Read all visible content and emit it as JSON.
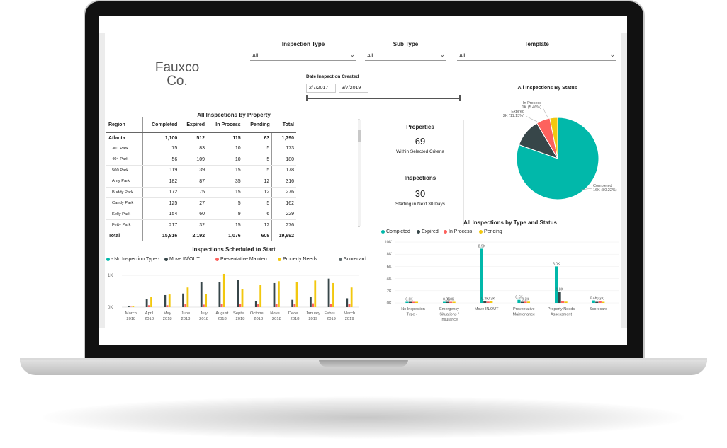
{
  "filters": {
    "inspection_type": {
      "label": "Inspection Type",
      "value": "All"
    },
    "sub_type": {
      "label": "Sub Type",
      "value": "All"
    },
    "template": {
      "label": "Template",
      "value": "All"
    },
    "date": {
      "label": "Date Inspection Created",
      "start": "2/7/2017",
      "end": "3/7/2019"
    }
  },
  "logo": {
    "line1": "Fauxco",
    "line2": "Co."
  },
  "property_table": {
    "title": "All Inspections by Property",
    "headers": [
      "Region",
      "Completed",
      "Expired",
      "In Process",
      "Pending",
      "Total"
    ],
    "rows": [
      {
        "name": "Atlanta",
        "completed": "1,100",
        "expired": "512",
        "in_process": "115",
        "pending": "63",
        "total": "1,790",
        "group": true
      },
      {
        "name": "301 Park",
        "completed": "75",
        "expired": "83",
        "in_process": "10",
        "pending": "5",
        "total": "173"
      },
      {
        "name": "404 Park",
        "completed": "56",
        "expired": "109",
        "in_process": "10",
        "pending": "5",
        "total": "180"
      },
      {
        "name": "500 Park",
        "completed": "119",
        "expired": "39",
        "in_process": "15",
        "pending": "5",
        "total": "178"
      },
      {
        "name": "Amy Park",
        "completed": "182",
        "expired": "87",
        "in_process": "35",
        "pending": "12",
        "total": "316"
      },
      {
        "name": "Buddy Park",
        "completed": "172",
        "expired": "75",
        "in_process": "15",
        "pending": "12",
        "total": "276"
      },
      {
        "name": "Candy Park",
        "completed": "125",
        "expired": "27",
        "in_process": "5",
        "pending": "5",
        "total": "162"
      },
      {
        "name": "Kelly Park",
        "completed": "154",
        "expired": "60",
        "in_process": "9",
        "pending": "6",
        "total": "229"
      },
      {
        "name": "Fetty Park",
        "completed": "217",
        "expired": "32",
        "in_process": "15",
        "pending": "12",
        "total": "276"
      }
    ],
    "total": {
      "name": "Total",
      "completed": "15,816",
      "expired": "2,192",
      "in_process": "1,076",
      "pending": "608",
      "total": "19,692"
    }
  },
  "cards": {
    "properties": {
      "title": "Properties",
      "value": "69",
      "sub": "Within Selected Criteria"
    },
    "inspections": {
      "title": "Inspections",
      "value": "30",
      "sub": "Starting in Next 30 Days"
    }
  },
  "colors": {
    "completed": "#01b8aa",
    "expired": "#374649",
    "in_process": "#fd625e",
    "pending": "#f2c80f",
    "scorecard": "#5f6b6d"
  },
  "chart_data": [
    {
      "type": "pie",
      "title": "All Inspections By Status",
      "slices": [
        {
          "name": "Completed",
          "value": 16000,
          "label": "Completed 16K (80.22%)",
          "label_name": "Completed",
          "label_value": "16K (80.22%)"
        },
        {
          "name": "Expired",
          "value": 2200,
          "label": "Expired 2K (11.13%)",
          "label_name": "Expired",
          "label_value": "2K (11.13%)"
        },
        {
          "name": "In Process",
          "value": 1076,
          "label": "In Process 1K (5.46%)",
          "label_name": "In Process",
          "label_value": "1K (5.46%)"
        },
        {
          "name": "Pending",
          "value": 608,
          "label_name": "",
          "label_value": ""
        }
      ]
    },
    {
      "type": "bar",
      "title": "Inspections Scheduled to Start",
      "legend": [
        "- No Inspection Type -",
        "Move IN/OUT",
        "Preventative Mainten...",
        "Property Needs ...",
        "Scorecard"
      ],
      "yticks": [
        "1K",
        "0K"
      ],
      "ylim": [
        0,
        1250
      ],
      "categories": [
        [
          "March",
          "2018"
        ],
        [
          "April",
          "2018"
        ],
        [
          "May",
          "2018"
        ],
        [
          "June",
          "2018"
        ],
        [
          "July",
          "2018"
        ],
        [
          "August",
          "2018"
        ],
        [
          "Septe...",
          "2018"
        ],
        [
          "Octobe...",
          "2018"
        ],
        [
          "Nove...",
          "2018"
        ],
        [
          "Dece...",
          "2018"
        ],
        [
          "January",
          "2019"
        ],
        [
          "Febru...",
          "2019"
        ],
        [
          "March",
          "2019"
        ]
      ],
      "series": [
        {
          "name": "- No Inspection Type -",
          "color": "#01b8aa",
          "values": [
            0,
            0,
            0,
            0,
            0,
            0,
            0,
            0,
            0,
            0,
            0,
            0,
            0
          ]
        },
        {
          "name": "Move IN/OUT",
          "color": "#374649",
          "values": [
            30,
            250,
            380,
            430,
            800,
            800,
            850,
            180,
            760,
            230,
            330,
            900,
            280
          ]
        },
        {
          "name": "Preventative Mainten...",
          "color": "#fd625e",
          "values": [
            10,
            60,
            60,
            90,
            80,
            100,
            100,
            100,
            110,
            110,
            120,
            110,
            100
          ]
        },
        {
          "name": "Property Needs ...",
          "color": "#f2c80f",
          "values": [
            20,
            330,
            400,
            620,
            420,
            1050,
            580,
            700,
            820,
            800,
            840,
            760,
            620
          ]
        },
        {
          "name": "Scorecard",
          "color": "#5f6b6d",
          "values": [
            0,
            0,
            0,
            0,
            0,
            0,
            0,
            0,
            0,
            0,
            0,
            0,
            0
          ]
        }
      ]
    },
    {
      "type": "bar",
      "title": "All Inspections by Type and Status",
      "legend": [
        "Completed",
        "Expired",
        "In Process",
        "Pending"
      ],
      "yticks": [
        "10K",
        "8K",
        "6K",
        "4K",
        "2K",
        "0K"
      ],
      "ylim": [
        0,
        10000
      ],
      "categories": [
        [
          "- No Inspection",
          "Type -"
        ],
        [
          "Emergency",
          "Situations /",
          "Insurance"
        ],
        [
          "Move IN/OUT"
        ],
        [
          "Preventative",
          "Maintenance"
        ],
        [
          "Property Needs",
          "Assessment"
        ],
        [
          "Scorecard"
        ]
      ],
      "series": [
        {
          "name": "Completed",
          "color": "#01b8aa",
          "values": [
            0,
            0,
            8900,
            500,
            6000,
            400
          ],
          "labels": [
            "0.0K",
            "0.0K",
            "8.9K",
            "0.5K",
            "6.0K",
            "0.4K"
          ]
        },
        {
          "name": "Expired",
          "color": "#374649",
          "values": [
            0,
            0,
            300,
            0,
            1800,
            0
          ],
          "labels": [
            "",
            "",
            "0.3K",
            "",
            "1.8K",
            ""
          ]
        },
        {
          "name": "In Process",
          "color": "#fd625e",
          "values": [
            0,
            0,
            200,
            200,
            300,
            300
          ],
          "labels": [
            "",
            "0.0K",
            "",
            "0.2K",
            "",
            "0.3K"
          ]
        },
        {
          "name": "Pending",
          "color": "#f2c80f",
          "values": [
            0,
            0,
            300,
            200,
            200,
            0
          ],
          "labels": [
            "",
            "",
            "0.3K",
            "",
            "",
            ""
          ]
        }
      ]
    }
  ]
}
